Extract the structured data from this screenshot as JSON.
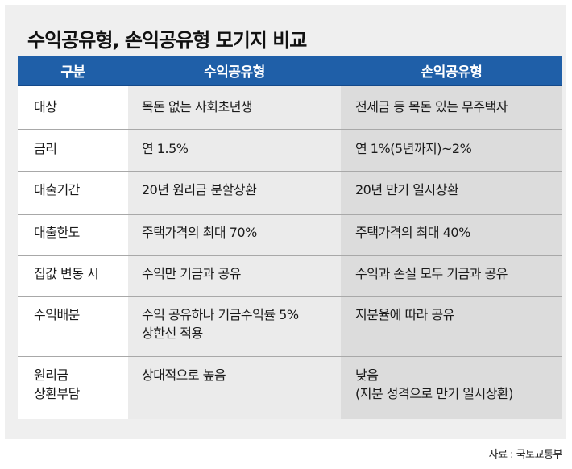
{
  "title": "수익공유형, 손익공유형 모기지 비교",
  "headers": [
    "구분",
    "수익공유형",
    "손익공유형"
  ],
  "colors": {
    "header_bg": "#1f5fa8",
    "header_text": "#ffffff",
    "panel_bg": "#efefef",
    "col_profit_bg": "#ebebeb",
    "col_loss_bg": "#dcdcdc"
  },
  "rows": [
    {
      "category": "대상",
      "profit_sharing": "목돈 없는 사회초년생",
      "profit_loss_sharing": "전세금 등 목돈 있는 무주택자"
    },
    {
      "category": "금리",
      "profit_sharing": "연 1.5%",
      "profit_loss_sharing": "연 1%(5년까지)~2%"
    },
    {
      "category": "대출기간",
      "profit_sharing": "20년 원리금 분할상환",
      "profit_loss_sharing": "20년 만기 일시상환"
    },
    {
      "category": "대출한도",
      "profit_sharing": "주택가격의 최대 70%",
      "profit_loss_sharing": "주택가격의 최대 40%"
    },
    {
      "category": "집값 변동 시",
      "profit_sharing": "수익만 기금과 공유",
      "profit_loss_sharing": "수익과 손실 모두 기금과 공유"
    },
    {
      "category": "수익배분",
      "profit_sharing": "수익 공유하나 기금수익률 5%\n상한선 적용",
      "profit_loss_sharing": "지분율에 따라 공유"
    },
    {
      "category": "원리금\n상환부담",
      "profit_sharing": "상대적으로 높음",
      "profit_loss_sharing": "낮음\n(지분 성격으로 만기 일시상환)"
    }
  ],
  "source": "자료 : 국토교통부"
}
